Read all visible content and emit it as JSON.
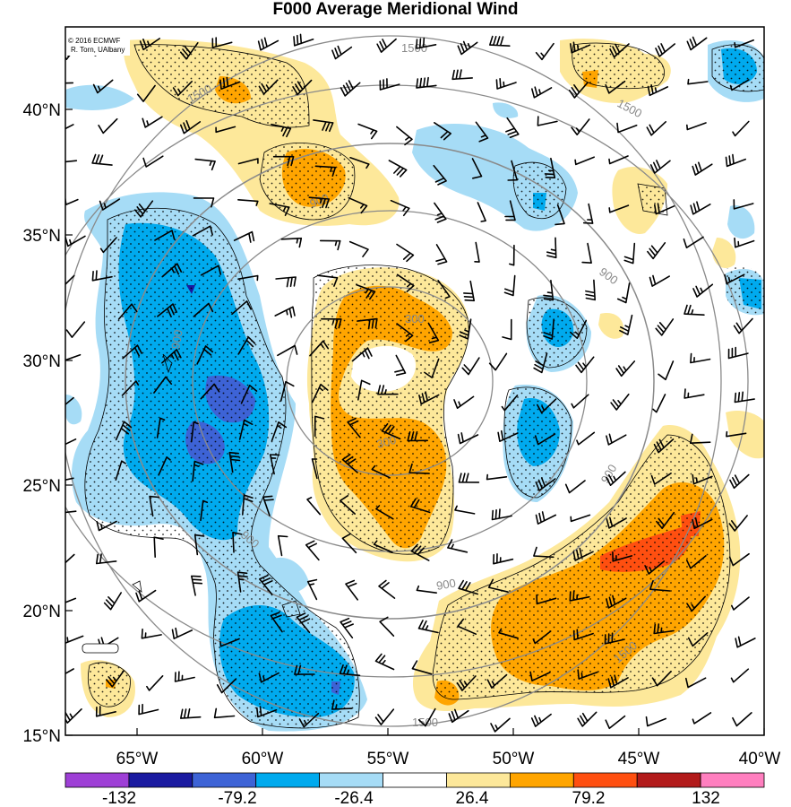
{
  "title": "F000 Average Meridional Wind",
  "credit_line1": "© 2016 ECMWF",
  "credit_line2": "R. Torn, UAlbany",
  "lat_labels": [
    "40°N",
    "35°N",
    "30°N",
    "25°N",
    "20°N",
    "15°N"
  ],
  "lon_labels": [
    "65°W",
    "60°W",
    "55°W",
    "50°W",
    "45°W",
    "40°W"
  ],
  "contour_labels": [
    "1500",
    "1500",
    "1500",
    "1500",
    "1500",
    "900",
    "900",
    "900",
    "900",
    "900",
    "900",
    "300",
    "300"
  ],
  "colorbar": {
    "colors": [
      "#9e3fd6",
      "#1a1aa0",
      "#3d63d6",
      "#00aaee",
      "#a6dcf6",
      "#ffffff",
      "#fde89a",
      "#ffa500",
      "#ff4f10",
      "#b21a1a",
      "#ff7fbf"
    ],
    "labels": [
      "-132",
      "-79.2",
      "-26.4",
      "26.4",
      "79.2",
      "132"
    ]
  },
  "legend_colors": {
    "strong_negative": "#3d63d6",
    "negative": "#00aaee",
    "weak_negative": "#a6dcf6",
    "weak_positive": "#fde89a",
    "positive": "#ffa500",
    "strong_positive": "#ff4f10",
    "contour_gray": "#8a8a8a"
  }
}
